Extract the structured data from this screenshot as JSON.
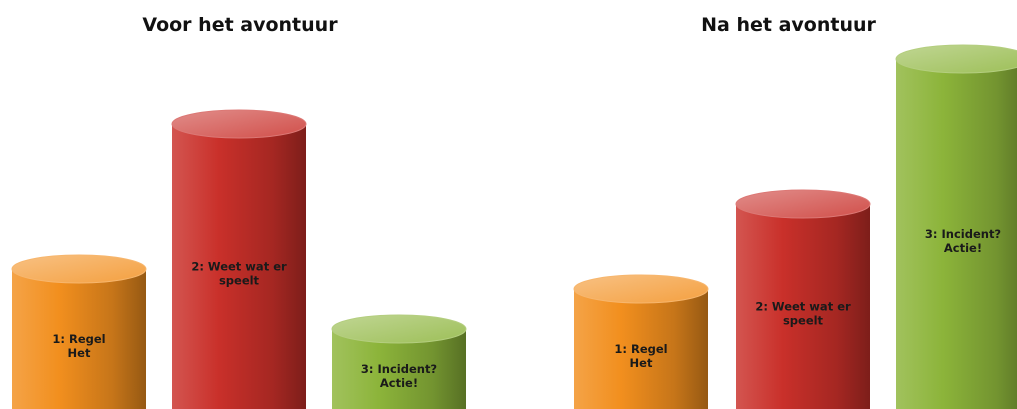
{
  "chart_data": [
    {
      "type": "bar",
      "style": "3d-cylinder",
      "title": "Voor het avontuur",
      "categories": [
        [
          "1: Regel",
          "Het"
        ],
        [
          "2: Weet wat er",
          "speelt"
        ],
        [
          "3: Incident?",
          "Actie!"
        ]
      ],
      "values": [
        1.4,
        2.85,
        0.8
      ],
      "colors": [
        "#f28f1e",
        "#c9302a",
        "#8cb43a"
      ],
      "grid": false,
      "axes_visible": false
    },
    {
      "type": "bar",
      "style": "3d-cylinder",
      "title": "Na het avontuur",
      "categories": [
        [
          "1: Regel",
          "Het"
        ],
        [
          "2: Weet wat er",
          "speelt"
        ],
        [
          "3: Incident?",
          "Actie!"
        ]
      ],
      "values": [
        1.2,
        2.05,
        3.5
      ],
      "colors": [
        "#f28f1e",
        "#c9302a",
        "#8cb43a"
      ],
      "grid": false,
      "axes_visible": false
    }
  ]
}
